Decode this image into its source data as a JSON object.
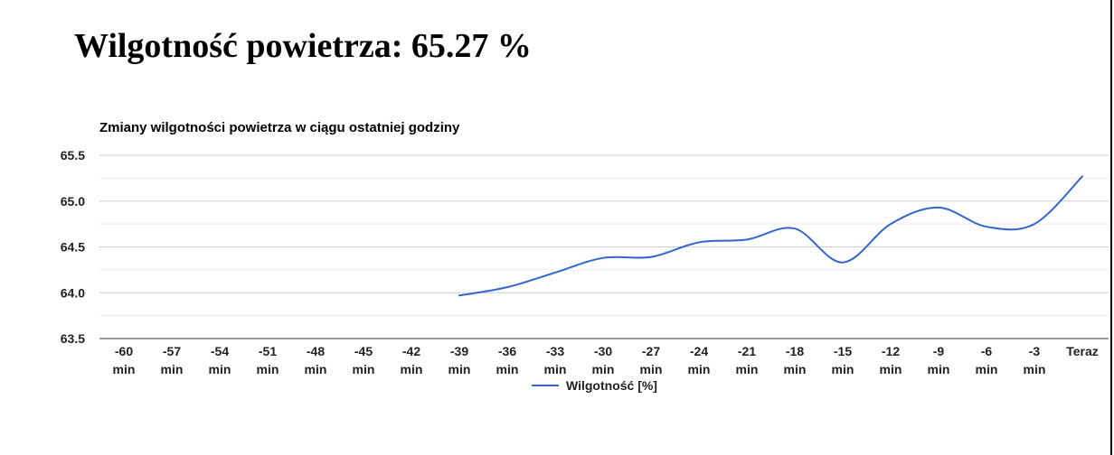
{
  "heading": {
    "label": "Wilgotność powietrza:",
    "value": "65.27",
    "unit": "%"
  },
  "chart_data": {
    "type": "line",
    "title": "Zmiany wilgotności powietrza w ciągu ostatniej godziny",
    "xlabel": "",
    "ylabel": "",
    "categories": [
      [
        "-60",
        "min"
      ],
      [
        "-57",
        "min"
      ],
      [
        "-54",
        "min"
      ],
      [
        "-51",
        "min"
      ],
      [
        "-48",
        "min"
      ],
      [
        "-45",
        "min"
      ],
      [
        "-42",
        "min"
      ],
      [
        "-39",
        "min"
      ],
      [
        "-36",
        "min"
      ],
      [
        "-33",
        "min"
      ],
      [
        "-30",
        "min"
      ],
      [
        "-27",
        "min"
      ],
      [
        "-24",
        "min"
      ],
      [
        "-21",
        "min"
      ],
      [
        "-18",
        "min"
      ],
      [
        "-15",
        "min"
      ],
      [
        "-12",
        "min"
      ],
      [
        "-9",
        "min"
      ],
      [
        "-6",
        "min"
      ],
      [
        "-3",
        "min"
      ],
      [
        "Teraz"
      ]
    ],
    "yticks": [
      "63.5",
      "64.0",
      "64.5",
      "65.0",
      "65.5"
    ],
    "ylim": [
      63.5,
      65.5
    ],
    "grid": true,
    "legend_position": "bottom",
    "series": [
      {
        "name": "Wilgotność [%]",
        "color": "#3366cc",
        "values": [
          null,
          null,
          null,
          null,
          null,
          null,
          null,
          63.97,
          64.06,
          64.22,
          64.38,
          64.39,
          64.55,
          64.58,
          64.7,
          64.33,
          64.75,
          64.93,
          64.72,
          64.75,
          65.27
        ]
      }
    ]
  }
}
